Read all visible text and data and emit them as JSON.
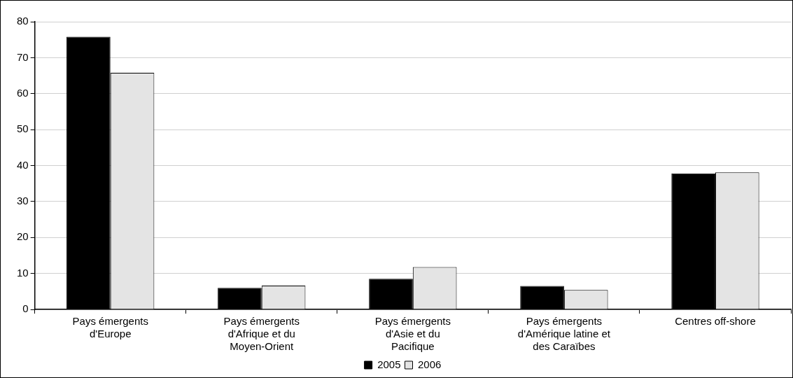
{
  "chart_data": {
    "type": "bar",
    "categories": [
      "Pays émergents d'Europe",
      "Pays émergents d'Afrique et du Moyen-Orient",
      "Pays émergents d'Asie et du Pacifique",
      "Pays émergents d'Amérique latine et des Caraïbes",
      "Centres off-shore"
    ],
    "series": [
      {
        "name": "2005",
        "color": "#000000",
        "values": [
          75.8,
          6.0,
          8.5,
          6.5,
          37.8
        ]
      },
      {
        "name": "2006",
        "color": "#e4e4e4",
        "values": [
          65.8,
          6.6,
          11.8,
          5.4,
          38.1
        ]
      }
    ],
    "ylim": [
      0,
      80
    ],
    "yticks": [
      0,
      10,
      20,
      30,
      40,
      50,
      60,
      70,
      80
    ],
    "grid": "y",
    "legend": "bottom"
  }
}
